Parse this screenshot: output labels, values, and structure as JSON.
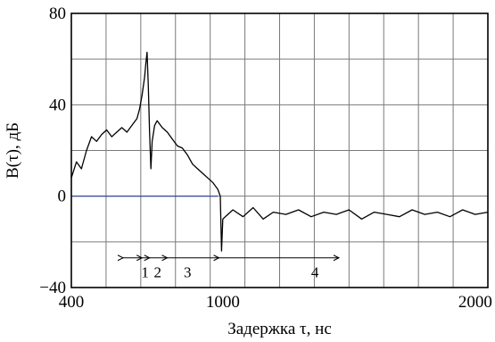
{
  "chart_data": {
    "type": "line",
    "xlabel": "Задержка τ, нс",
    "ylabel": "B(τ), дБ",
    "xlim": [
      400,
      2050
    ],
    "ylim": [
      -40,
      80
    ],
    "x_ticks": [
      400,
      1000,
      2000
    ],
    "x_tick_labels": [
      "400",
      "1000",
      "2000"
    ],
    "y_ticks": [
      -40,
      0,
      40,
      80
    ],
    "y_tick_labels": [
      "−40",
      "0",
      "40",
      "80"
    ],
    "grid": true,
    "series": [
      {
        "color": "#000000",
        "x": [
          400,
          420,
          440,
          460,
          480,
          500,
          520,
          540,
          560,
          580,
          600,
          620,
          640,
          660,
          670,
          680,
          690,
          695,
          700,
          705,
          710,
          715,
          720,
          730,
          740,
          760,
          780,
          800,
          820,
          840,
          860,
          880,
          900,
          920,
          940,
          960,
          980,
          990,
          995,
          1000,
          1020,
          1040,
          1080,
          1120,
          1160,
          1200,
          1250,
          1300,
          1350,
          1400,
          1450,
          1500,
          1550,
          1600,
          1650,
          1700,
          1750,
          1800,
          1850,
          1900,
          1950,
          2000,
          2050
        ],
        "y": [
          8,
          15,
          12,
          20,
          26,
          24,
          27,
          29,
          26,
          28,
          30,
          28,
          31,
          34,
          38,
          44,
          52,
          58,
          63,
          48,
          28,
          12,
          24,
          31,
          33,
          30,
          28,
          25,
          22,
          21,
          18,
          14,
          12,
          10,
          8,
          6,
          3,
          0,
          -24,
          -10,
          -8,
          -6,
          -9,
          -5,
          -10,
          -7,
          -8,
          -6,
          -9,
          -7,
          -8,
          -6,
          -10,
          -7,
          -8,
          -9,
          -6,
          -8,
          -7,
          -9,
          -6,
          -8,
          -7
        ]
      },
      {
        "color": "#2d3f9a",
        "x": [
          400,
          980
        ],
        "y": [
          0,
          0
        ]
      }
    ],
    "annotations": {
      "region_labels": [
        "1",
        "2",
        "3",
        "4"
      ],
      "arrow_level_y": -27,
      "boundaries_x": [
        605,
        680,
        710,
        780,
        985,
        1460
      ]
    }
  }
}
